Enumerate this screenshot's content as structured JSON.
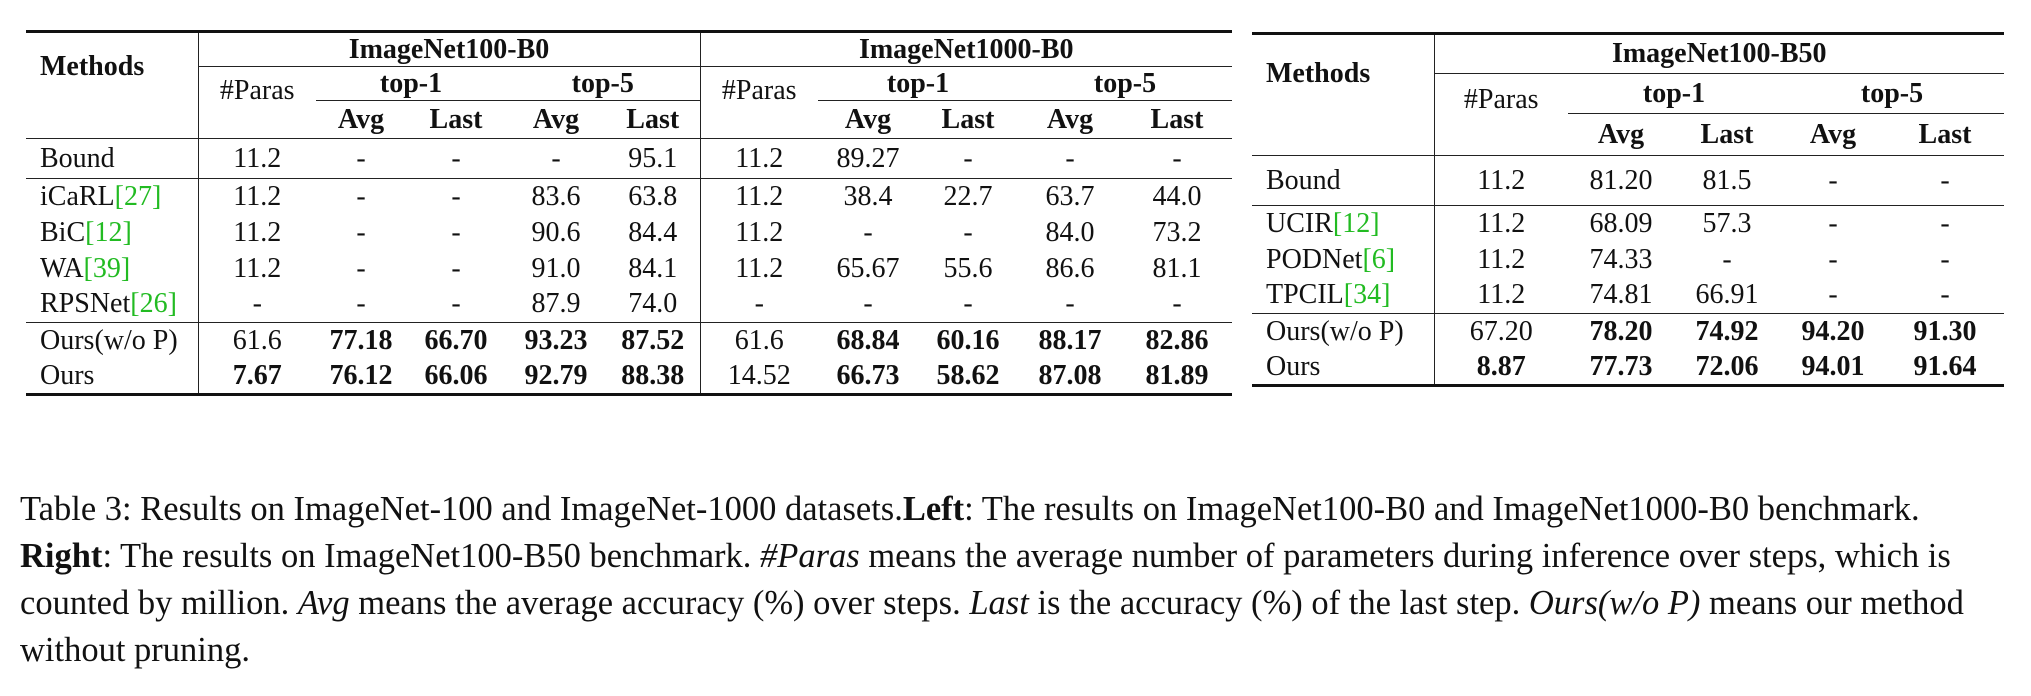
{
  "left_table": {
    "methods_header": "Methods",
    "group1": "ImageNet100-B0",
    "group2": "ImageNet1000-B0",
    "paras": "#Paras",
    "top1": "top-1",
    "top5": "top-5",
    "avg": "Avg",
    "last": "Last",
    "rows": [
      {
        "method": "Bound",
        "cite": "",
        "cells": [
          "11.2",
          "-",
          "-",
          "-",
          "95.1",
          "11.2",
          "89.27",
          "-",
          "-",
          "-"
        ],
        "bold": []
      },
      {
        "method": "iCaRL",
        "cite": "[27]",
        "cells": [
          "11.2",
          "-",
          "-",
          "83.6",
          "63.8",
          "11.2",
          "38.4",
          "22.7",
          "63.7",
          "44.0"
        ],
        "bold": []
      },
      {
        "method": "BiC",
        "cite": "[12]",
        "cells": [
          "11.2",
          "-",
          "-",
          "90.6",
          "84.4",
          "11.2",
          "-",
          "-",
          "84.0",
          "73.2"
        ],
        "bold": []
      },
      {
        "method": "WA",
        "cite": "[39]",
        "cells": [
          "11.2",
          "-",
          "-",
          "91.0",
          "84.1",
          "11.2",
          "65.67",
          "55.6",
          "86.6",
          "81.1"
        ],
        "bold": []
      },
      {
        "method": "RPSNet",
        "cite": "[26]",
        "cells": [
          "-",
          "-",
          "-",
          "87.9",
          "74.0",
          "-",
          "-",
          "-",
          "-",
          "-"
        ],
        "bold": []
      },
      {
        "method": "Ours(w/o P)",
        "cite": "",
        "cells": [
          "61.6",
          "77.18",
          "66.70",
          "93.23",
          "87.52",
          "61.6",
          "68.84",
          "60.16",
          "88.17",
          "82.86"
        ],
        "bold": [
          1,
          2,
          3,
          4,
          6,
          7,
          8,
          9
        ]
      },
      {
        "method": "Ours",
        "cite": "",
        "cells": [
          "7.67",
          "76.12",
          "66.06",
          "92.79",
          "88.38",
          "14.52",
          "66.73",
          "58.62",
          "87.08",
          "81.89"
        ],
        "bold": [
          0,
          1,
          2,
          3,
          4,
          6,
          7,
          8,
          9
        ]
      }
    ]
  },
  "right_table": {
    "methods_header": "Methods",
    "group1": "ImageNet100-B50",
    "paras": "#Paras",
    "top1": "top-1",
    "top5": "top-5",
    "avg": "Avg",
    "last": "Last",
    "rows": [
      {
        "method": "Bound",
        "cite": "",
        "cells": [
          "11.2",
          "81.20",
          "81.5",
          "-",
          "-"
        ],
        "bold": []
      },
      {
        "method": "UCIR",
        "cite": "[12]",
        "cells": [
          "11.2",
          "68.09",
          "57.3",
          "-",
          "-"
        ],
        "bold": []
      },
      {
        "method": "PODNet",
        "cite": "[6]",
        "cells": [
          "11.2",
          "74.33",
          "-",
          "-",
          "-"
        ],
        "bold": []
      },
      {
        "method": "TPCIL",
        "cite": "[34]",
        "cells": [
          "11.2",
          "74.81",
          "66.91",
          "-",
          "-"
        ],
        "bold": []
      },
      {
        "method": "Ours(w/o P)",
        "cite": "",
        "cells": [
          "67.20",
          "78.20",
          "74.92",
          "94.20",
          "91.30"
        ],
        "bold": [
          1,
          2,
          3,
          4
        ]
      },
      {
        "method": "Ours",
        "cite": "",
        "cells": [
          "8.87",
          "77.73",
          "72.06",
          "94.01",
          "91.64"
        ],
        "bold": [
          0,
          1,
          2,
          3,
          4
        ]
      }
    ]
  },
  "caption": {
    "label": "Table 3: Results on ImageNet-100 and ImageNet-1000 datasets.",
    "left_word": "Left",
    "left_text": ": The results on ImageNet100-B0 and ImageNet1000-B0 benchmark. ",
    "right_word": "Right",
    "right_text": ": The results on ImageNet100-B50 benchmark. ",
    "paras_term": "#Paras",
    "paras_text": " means the average number of parameters during inference over steps, which is counted by million. ",
    "avg_term": "Avg",
    "avg_text": " means the average accuracy (%) over steps. ",
    "last_term": "Last",
    "last_text": " is the accuracy (%) of the last step. ",
    "ours_term": "Ours(w/o P)",
    "ours_text": " means our method without pruning."
  }
}
